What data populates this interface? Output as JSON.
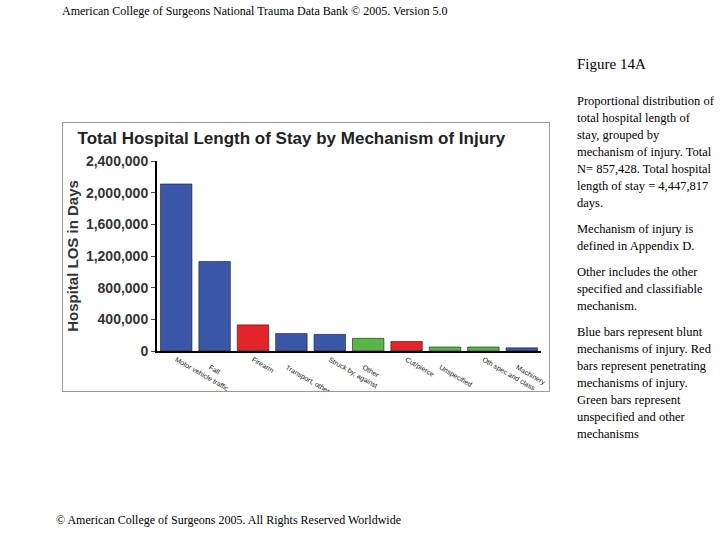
{
  "header": "American College of Surgeons National Trauma Data Bank © 2005. Version 5.0",
  "figure": {
    "label": "Figure 14A",
    "caption": [
      "Proportional distribution of total hospital length of stay, grouped by mechanism of injury.  Total N= 857,428.  Total hospital length of stay  = 4,447,817 days.",
      "Mechanism of injury is defined in Appendix D.",
      "Other includes the other specified and classifiable mechanism.",
      "Blue bars represent blunt mechanisms of injury.  Red bars represent penetrating mechanisms of injury.  Green bars represent unspecified and other mechanisms"
    ]
  },
  "footer": "© American College of Surgeons 2005. All Rights Reserved Worldwide",
  "chart_data": {
    "type": "bar",
    "title": "Total Hospital Length of Stay by Mechanism of Injury",
    "y_label": "Hospital LOS in Days",
    "categories": [
      "Motor vehicle traffic",
      "Fall",
      "Firearm",
      "Transport, other",
      "Struck by, against",
      "Other",
      "Cut/pierce",
      "Unspecified",
      "Oth spec and class",
      "Machinery"
    ],
    "values": [
      2110000,
      1130000,
      330000,
      220000,
      210000,
      160000,
      120000,
      50000,
      50000,
      40000
    ],
    "colors": [
      "#3b57a7",
      "#3b57a7",
      "#e3252b",
      "#3b57a7",
      "#3b57a7",
      "#58b546",
      "#e3252b",
      "#58b546",
      "#58b546",
      "#3b57a7"
    ],
    "ylim": [
      0,
      2400000
    ],
    "yticks": [
      0,
      {
        "value": 400000,
        "label": "400,000"
      },
      {
        "value": 800000,
        "label": "800,000"
      },
      {
        "value": 1200000,
        "label": "1,200,000"
      },
      {
        "value": 1600000,
        "label": "1,600,000"
      },
      {
        "value": 2000000,
        "label": "2,000,000"
      },
      {
        "value": 2400000,
        "label": "2,400,000"
      }
    ],
    "grid": false,
    "data_labels": false
  }
}
